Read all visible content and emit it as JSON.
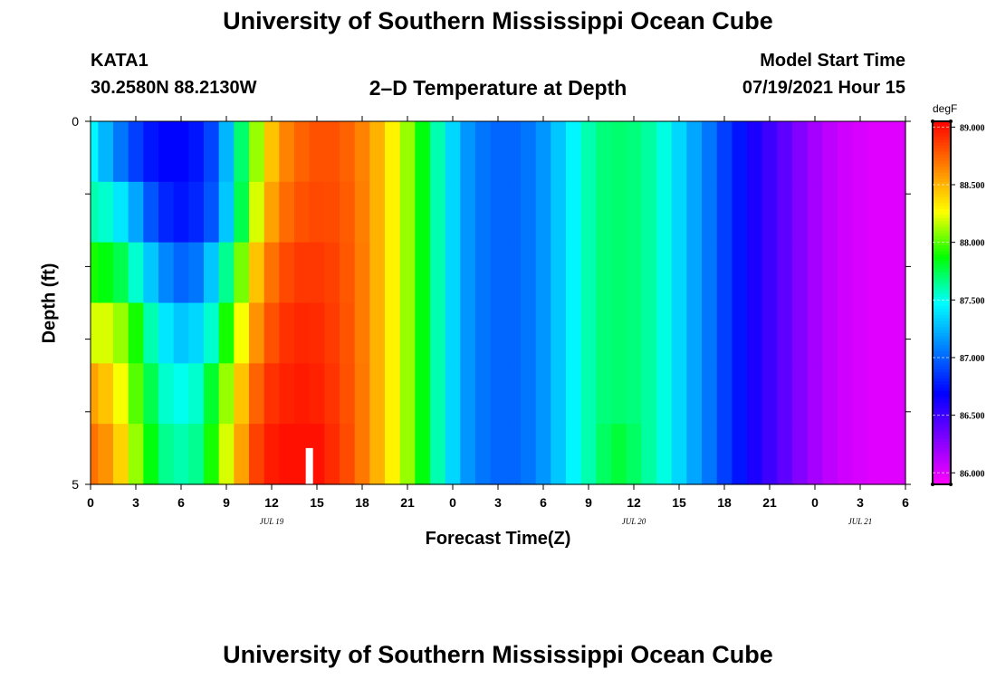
{
  "header": {
    "title": "University of Southern Mississippi Ocean Cube",
    "station": "KATA1",
    "coords": "30.2580N  88.2130W",
    "plot_title": "2–D Temperature at Depth",
    "model_start_label": "Model Start Time",
    "model_start_value": "07/19/2021 Hour 15"
  },
  "footer": {
    "title": "University of Southern Mississippi Ocean Cube"
  },
  "chart_data": {
    "type": "heatmap",
    "title": "2–D Temperature at Depth",
    "xlabel": "Forecast Time(Z)",
    "ylabel": "Depth (ft)",
    "x_range": [
      0,
      54
    ],
    "y_range": [
      0,
      5
    ],
    "y_ticks": [
      0,
      1,
      2,
      3,
      4,
      5
    ],
    "y_tick_labels": [
      "0",
      "",
      "",
      "",
      "",
      "5"
    ],
    "x_ticks": [
      0,
      3,
      6,
      9,
      12,
      15,
      18,
      21,
      24,
      27,
      30,
      33,
      36,
      39,
      42,
      45,
      48,
      51,
      54
    ],
    "x_tick_labels": [
      "0",
      "3",
      "6",
      "9",
      "12",
      "15",
      "18",
      "21",
      "0",
      "3",
      "6",
      "9",
      "12",
      "15",
      "18",
      "21",
      "0",
      "3",
      "6"
    ],
    "date_labels": [
      {
        "label": "JUL 19",
        "x": 12
      },
      {
        "label": "JUL 20",
        "x": 36
      },
      {
        "label": "JUL 21",
        "x": 51
      }
    ],
    "depth_layers": [
      0,
      1,
      2,
      3,
      4,
      5
    ],
    "x": [
      0,
      1,
      2,
      3,
      4,
      5,
      6,
      7,
      8,
      9,
      10,
      11,
      12,
      13,
      14,
      15,
      16,
      17,
      18,
      19,
      20,
      21,
      22,
      23,
      24,
      25,
      26,
      27,
      28,
      29,
      30,
      31,
      32,
      33,
      34,
      35,
      36,
      37,
      38,
      39,
      40,
      41,
      42,
      43,
      44,
      45,
      46,
      47,
      48,
      49,
      50,
      51,
      52,
      53,
      54
    ],
    "values": [
      [
        87.45,
        87.25,
        87.05,
        86.88,
        86.75,
        86.7,
        86.7,
        86.75,
        86.9,
        87.25,
        87.7,
        88.1,
        88.45,
        88.65,
        88.75,
        88.8,
        88.8,
        88.75,
        88.65,
        88.5,
        88.3,
        88.1,
        87.85,
        87.6,
        87.35,
        87.15,
        87.05,
        87.0,
        87.0,
        87.05,
        87.15,
        87.3,
        87.45,
        87.6,
        87.68,
        87.7,
        87.68,
        87.62,
        87.52,
        87.35,
        87.2,
        87.05,
        86.88,
        86.75,
        86.6,
        86.5,
        86.4,
        86.28,
        86.18,
        86.1,
        86.05,
        86.02,
        86.0,
        86.0,
        86.0
      ],
      [
        87.6,
        87.55,
        87.4,
        87.2,
        86.95,
        86.8,
        86.75,
        86.8,
        86.95,
        87.3,
        87.75,
        88.2,
        88.55,
        88.72,
        88.8,
        88.83,
        88.82,
        88.77,
        88.66,
        88.5,
        88.3,
        88.1,
        87.85,
        87.6,
        87.35,
        87.15,
        87.05,
        87.0,
        87.0,
        87.05,
        87.15,
        87.3,
        87.45,
        87.6,
        87.68,
        87.7,
        87.68,
        87.62,
        87.52,
        87.35,
        87.2,
        87.05,
        86.88,
        86.75,
        86.6,
        86.5,
        86.4,
        86.28,
        86.18,
        86.1,
        86.05,
        86.02,
        86.0,
        86.0,
        86.0
      ],
      [
        87.9,
        87.85,
        87.75,
        87.55,
        87.3,
        87.1,
        87.0,
        87.05,
        87.3,
        87.65,
        88.05,
        88.45,
        88.7,
        88.83,
        88.88,
        88.88,
        88.85,
        88.78,
        88.67,
        88.5,
        88.3,
        88.1,
        87.85,
        87.6,
        87.35,
        87.15,
        87.05,
        87.0,
        87.0,
        87.05,
        87.15,
        87.3,
        87.45,
        87.6,
        87.68,
        87.7,
        87.68,
        87.62,
        87.52,
        87.35,
        87.2,
        87.05,
        86.88,
        86.75,
        86.6,
        86.5,
        86.4,
        86.28,
        86.18,
        86.1,
        86.05,
        86.02,
        86.0,
        86.0,
        86.0
      ],
      [
        88.2,
        88.2,
        88.1,
        87.9,
        87.6,
        87.4,
        87.3,
        87.35,
        87.55,
        87.9,
        88.25,
        88.6,
        88.8,
        88.9,
        88.93,
        88.92,
        88.87,
        88.79,
        88.67,
        88.5,
        88.3,
        88.1,
        87.85,
        87.6,
        87.35,
        87.15,
        87.05,
        87.0,
        87.0,
        87.05,
        87.15,
        87.3,
        87.45,
        87.6,
        87.68,
        87.7,
        87.68,
        87.62,
        87.52,
        87.35,
        87.2,
        87.05,
        86.88,
        86.75,
        86.6,
        86.5,
        86.4,
        86.28,
        86.18,
        86.1,
        86.05,
        86.02,
        86.0,
        86.0,
        86.0
      ],
      [
        88.55,
        88.45,
        88.25,
        88.0,
        87.75,
        87.55,
        87.5,
        87.55,
        87.8,
        88.1,
        88.45,
        88.75,
        88.9,
        88.95,
        88.97,
        88.95,
        88.89,
        88.8,
        88.68,
        88.5,
        88.3,
        88.1,
        87.85,
        87.6,
        87.35,
        87.15,
        87.05,
        87.0,
        87.0,
        87.05,
        87.15,
        87.3,
        87.45,
        87.6,
        87.68,
        87.7,
        87.68,
        87.62,
        87.52,
        87.35,
        87.2,
        87.05,
        86.88,
        86.75,
        86.6,
        86.5,
        86.4,
        86.28,
        86.18,
        86.1,
        86.05,
        86.02,
        86.0,
        86.0,
        86.0
      ],
      [
        88.7,
        88.6,
        88.4,
        88.1,
        87.85,
        87.65,
        87.6,
        87.65,
        87.9,
        88.2,
        88.55,
        88.85,
        88.97,
        89.0,
        89.0,
        89.0,
        88.92,
        88.82,
        88.68,
        88.5,
        88.3,
        88.1,
        87.85,
        87.6,
        87.35,
        87.15,
        87.05,
        87.0,
        87.0,
        87.05,
        87.15,
        87.3,
        87.45,
        87.6,
        87.72,
        87.78,
        87.72,
        87.62,
        87.52,
        87.35,
        87.2,
        87.05,
        86.88,
        86.75,
        86.6,
        86.5,
        86.4,
        86.28,
        86.18,
        86.1,
        86.05,
        86.02,
        86.0,
        86.0,
        86.0
      ]
    ],
    "highlight": {
      "x": 14.5,
      "y_from": 4.5,
      "y_to": 5,
      "color": "#ffffff"
    },
    "colorbar": {
      "unit": "degF",
      "min": 85.9,
      "max": 89.05,
      "ticks": [
        86.0,
        86.5,
        87.0,
        87.5,
        88.0,
        88.5,
        89.0
      ],
      "tick_labels": [
        "86.000",
        "86.500",
        "87.000",
        "87.500",
        "88.000",
        "88.500",
        "89.000"
      ],
      "colors": [
        "#ff00ff",
        "#8000ff",
        "#0000ff",
        "#0080ff",
        "#00ffff",
        "#00ff00",
        "#ffff00",
        "#ff8000",
        "#ff0000"
      ]
    }
  }
}
